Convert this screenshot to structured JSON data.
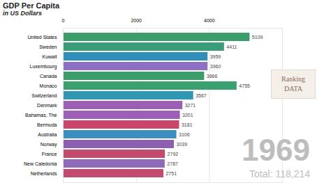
{
  "chart_data": {
    "type": "bar",
    "title": "GDP Per Capita",
    "subtitle": "in US Dollars",
    "orientation": "horizontal",
    "categories": [
      "United States",
      "Sweden",
      "Kuwait",
      "Luxembourg",
      "Canada",
      "Monaco",
      "Switzerland",
      "Denmark",
      "Bahamas, The",
      "Bermuda",
      "Australia",
      "Norway",
      "France",
      "New Caledonia",
      "Netherlands"
    ],
    "values": [
      5109,
      4411,
      3959,
      3960,
      3866,
      4755,
      3567,
      3271,
      3201,
      3181,
      3106,
      3039,
      2792,
      2787,
      2751
    ],
    "colors": [
      "#3a9d6a",
      "#3a9d7a",
      "#2f8fb8",
      "#8e6fc6",
      "#3a9d6a",
      "#3aa070",
      "#2f96b4",
      "#9b5fb5",
      "#9b5fb5",
      "#c9456a",
      "#3a8fc0",
      "#8e5fb0",
      "#c24a6e",
      "#8e6ab8",
      "#c24a6e"
    ],
    "xlim": [
      0,
      6000
    ],
    "xticks": [
      0,
      2000,
      4000
    ],
    "grid": true,
    "data_labels": true,
    "watermark": "Ranking DATA",
    "annotations": [
      "1969",
      "Total: 118,214"
    ]
  }
}
